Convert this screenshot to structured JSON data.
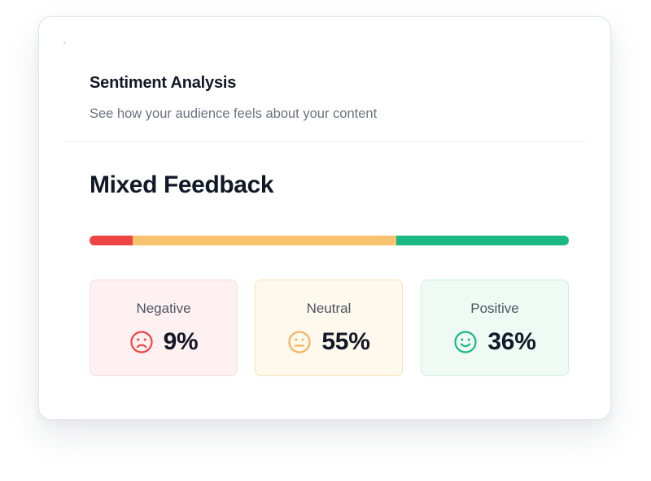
{
  "header": {
    "title": "Sentiment Analysis",
    "subtitle": "See how your audience feels about your content"
  },
  "summary": {
    "verdict": "Mixed Feedback"
  },
  "sentiments": [
    {
      "key": "negative",
      "label": "Negative",
      "value": "9%",
      "share": 9,
      "icon": "frown-face-icon",
      "color": "#ef4444"
    },
    {
      "key": "neutral",
      "label": "Neutral",
      "value": "55%",
      "share": 55,
      "icon": "neutral-face-icon",
      "color": "#f8c36f"
    },
    {
      "key": "positive",
      "label": "Positive",
      "value": "36%",
      "share": 36,
      "icon": "smile-face-icon",
      "color": "#1bb784"
    }
  ]
}
